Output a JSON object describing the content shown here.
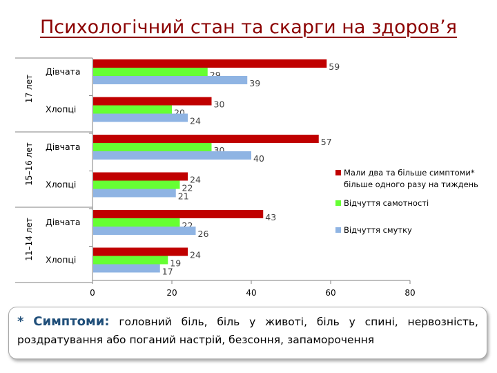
{
  "title": "Психологічний стан та скарги на здоров’я",
  "chart_data": {
    "type": "bar",
    "orientation": "horizontal",
    "groups": [
      {
        "label": "17 лет",
        "categories": [
          "Дівчата",
          "Хлопці"
        ]
      },
      {
        "label": "15–16 лет",
        "categories": [
          "Дівчата",
          "Хлопці"
        ]
      },
      {
        "label": "11–14 лет",
        "categories": [
          "Дівчата",
          "Хлопці"
        ]
      }
    ],
    "categories": [
      "Дівчата",
      "Хлопці",
      "Дівчата",
      "Хлопці",
      "Дівчата",
      "Хлопці"
    ],
    "series": [
      {
        "name": "Мали два та більше симптоми* більше одного разу на тиждень",
        "color": "#c00000",
        "values": [
          59,
          30,
          57,
          24,
          43,
          24
        ]
      },
      {
        "name": "Відчуття самотності",
        "color": "#66ff33",
        "values": [
          29,
          20,
          30,
          22,
          22,
          19
        ]
      },
      {
        "name": "Відчуття смутку",
        "color": "#8fb4e3",
        "values": [
          39,
          24,
          40,
          21,
          26,
          17
        ]
      }
    ],
    "xlim": [
      0,
      80
    ],
    "xticks": [
      0,
      20,
      40,
      60,
      80
    ],
    "legend_position": "right",
    "grid": false
  },
  "legend_lines": [
    [
      "Мали два та більше симптоми*",
      "більше одного разу на тиждень"
    ],
    [
      "Відчуття самотності"
    ],
    [
      "Відчуття смутку"
    ]
  ],
  "footnote": {
    "star": "*",
    "heading": "Симптоми:",
    "text": " головний біль, біль у животі, біль у спині, нервозність, роздратування або поганий настрій, безсоння, запаморочення"
  }
}
